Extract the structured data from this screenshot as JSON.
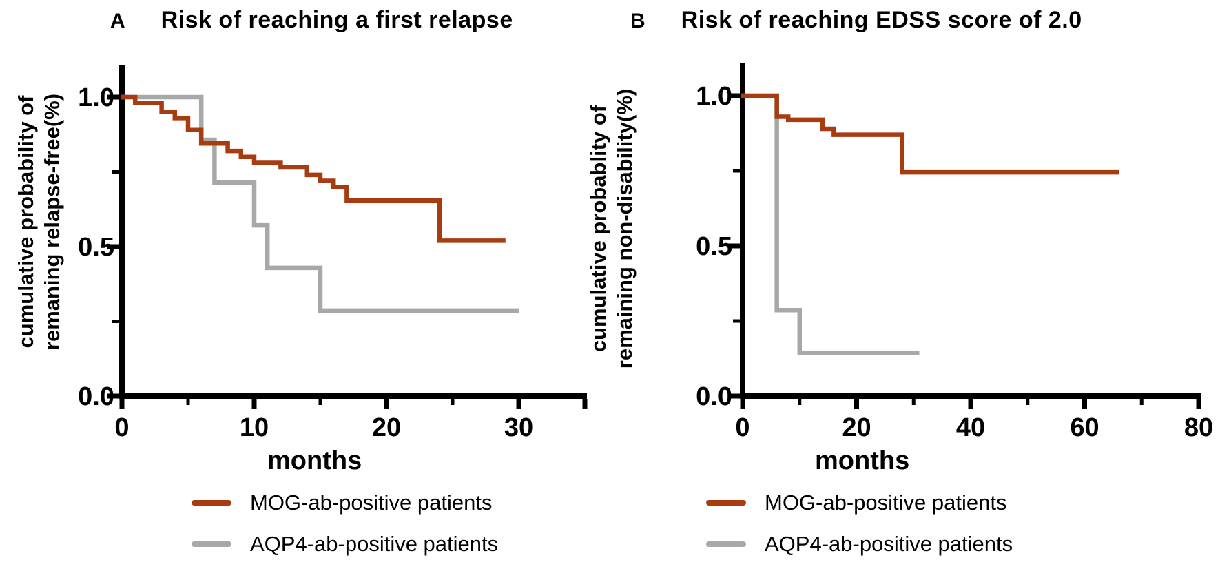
{
  "colors": {
    "background": "#ffffff",
    "axis": "#000000",
    "text": "#000000"
  },
  "chart_data": [
    {
      "type": "line",
      "subtype": "kaplan_meier_step",
      "panel_label": "A",
      "title": "Risk of reaching a first relapse",
      "xlabel": "months",
      "ylabel_lines": [
        "cumulative probability of",
        "remaning relapse-free(%)"
      ],
      "xlim": [
        0,
        35
      ],
      "ylim": [
        0.0,
        1.0
      ],
      "grid": false,
      "legend_position": "below",
      "x_ticks": {
        "major": [
          0,
          10,
          20,
          30
        ],
        "labels": [
          "0",
          "10",
          "20",
          "30"
        ],
        "minor": [
          5,
          15,
          25
        ],
        "axis_end_tick": 35
      },
      "y_ticks": {
        "major": [
          1.0,
          0.5,
          0.0
        ],
        "labels": [
          "1.0",
          "0.5",
          "0.0"
        ],
        "minor": [
          0.75,
          0.25
        ]
      },
      "series": [
        {
          "name": "MOG-ab-positive patients",
          "color": "#a63c10",
          "points": [
            [
              0,
              1.0
            ],
            [
              1,
              0.98
            ],
            [
              3,
              0.95
            ],
            [
              4,
              0.93
            ],
            [
              5,
              0.89
            ],
            [
              6,
              0.845
            ],
            [
              8,
              0.82
            ],
            [
              9,
              0.8
            ],
            [
              10,
              0.78
            ],
            [
              12,
              0.765
            ],
            [
              14,
              0.74
            ],
            [
              15,
              0.72
            ],
            [
              16,
              0.7
            ],
            [
              17,
              0.655
            ],
            [
              24,
              0.52
            ],
            [
              29,
              0.52
            ]
          ]
        },
        {
          "name": "AQP4-ab-positive patients",
          "color": "#a8a8a8",
          "points": [
            [
              0,
              1.0
            ],
            [
              6,
              0.857
            ],
            [
              7,
              0.714
            ],
            [
              10,
              0.571
            ],
            [
              11,
              0.429
            ],
            [
              15,
              0.286
            ],
            [
              30,
              0.286
            ]
          ]
        }
      ]
    },
    {
      "type": "line",
      "subtype": "kaplan_meier_step",
      "panel_label": "B",
      "title": "Risk of reaching EDSS score of 2.0",
      "xlabel": "months",
      "ylabel_lines": [
        "cumulative probablity of",
        "remaining non-disability(%)"
      ],
      "xlim": [
        0,
        80
      ],
      "ylim": [
        0.0,
        1.0
      ],
      "grid": false,
      "legend_position": "below",
      "x_ticks": {
        "major": [
          0,
          20,
          40,
          60,
          80
        ],
        "labels": [
          "0",
          "20",
          "40",
          "60",
          "80"
        ],
        "minor": [
          10,
          30,
          50,
          70
        ],
        "axis_end_tick": null
      },
      "y_ticks": {
        "major": [
          1.0,
          0.5,
          0.0
        ],
        "labels": [
          "1.0",
          "0.5",
          "0.0"
        ],
        "minor": [
          0.75,
          0.25
        ]
      },
      "series": [
        {
          "name": "MOG-ab-positive patients",
          "color": "#a63c10",
          "points": [
            [
              0,
              1.0
            ],
            [
              6,
              0.93
            ],
            [
              8,
              0.92
            ],
            [
              14,
              0.89
            ],
            [
              16,
              0.87
            ],
            [
              28,
              0.745
            ],
            [
              66,
              0.745
            ]
          ]
        },
        {
          "name": "AQP4-ab-positive patients",
          "color": "#a8a8a8",
          "points": [
            [
              0,
              1.0
            ],
            [
              6,
              0.286
            ],
            [
              10,
              0.143
            ],
            [
              31,
              0.143
            ]
          ]
        }
      ]
    }
  ]
}
